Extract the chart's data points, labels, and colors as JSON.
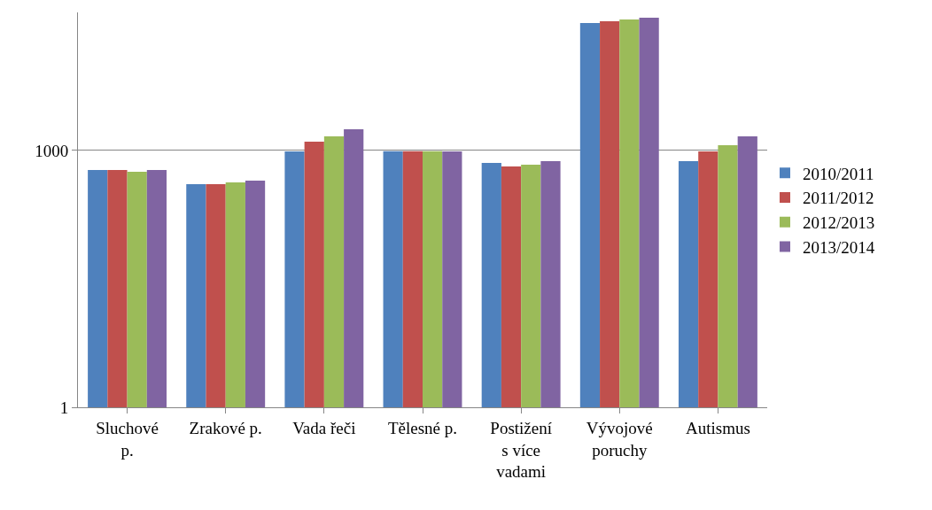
{
  "chart_data": {
    "type": "bar",
    "categories": [
      "Sluchové p.",
      "Zrakové p.",
      "Vada řeči",
      "Tělesné p.",
      "Postižení s více vadami",
      "Vývojové poruchy",
      "Autismus"
    ],
    "series": [
      {
        "name": "2010/2011",
        "color": "#4f81bd",
        "values": [
          590,
          404,
          977,
          980,
          716,
          30850,
          751
        ]
      },
      {
        "name": "2011/2012",
        "color": "#c0504d",
        "values": [
          590,
          404,
          1268,
          980,
          651,
          32400,
          977
        ]
      },
      {
        "name": "2012/2013",
        "color": "#9bbb59",
        "values": [
          565,
          424,
          1463,
          980,
          683,
          33960,
          1153
        ]
      },
      {
        "name": "2013/2014",
        "color": "#8064a2",
        "values": [
          590,
          445,
          1771,
          977,
          751,
          35600,
          1463
        ]
      }
    ],
    "log": "y",
    "ylim": [
      1,
      41000
    ],
    "yticks": [
      1,
      1000
    ],
    "grid": "y",
    "legend": "right"
  }
}
